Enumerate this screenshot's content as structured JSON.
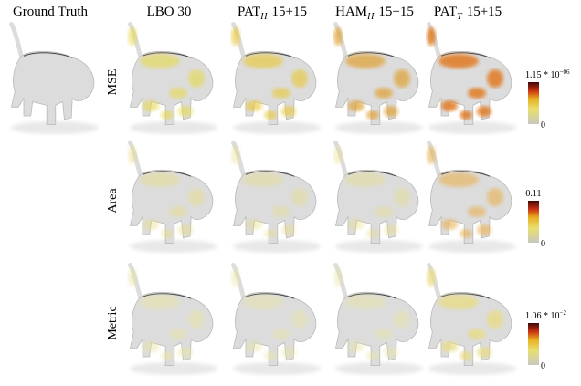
{
  "columns": [
    {
      "text": "Ground Truth"
    },
    {
      "text": "LBO 30"
    },
    {
      "base": "PAT",
      "sub": "H",
      "suffix": "15+15"
    },
    {
      "base": "HAM",
      "sub": "H",
      "suffix": "15+15"
    },
    {
      "base": "PAT",
      "sub": "T",
      "suffix": "15+15"
    }
  ],
  "rows": [
    {
      "label": "MSE",
      "scale_max": {
        "mantissa": "1.15 * 10",
        "exponent": "−06"
      },
      "scale_min": "0"
    },
    {
      "label": "Area",
      "scale_max": "0.11",
      "scale_min": "0"
    },
    {
      "label": "Metric",
      "scale_max": {
        "mantissa": "1.06 * 10",
        "exponent": "−2"
      },
      "scale_min": "0"
    }
  ]
}
